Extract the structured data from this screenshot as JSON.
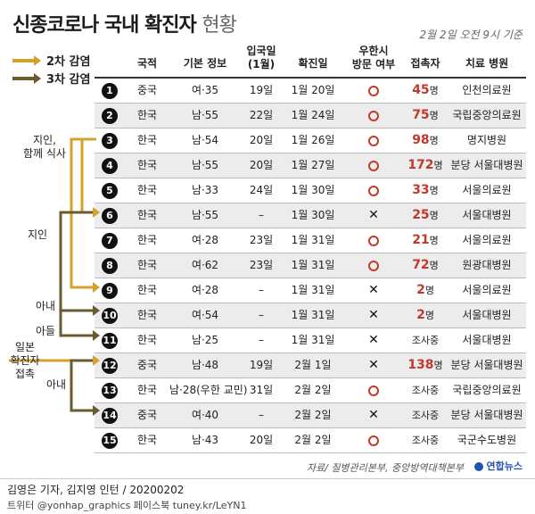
{
  "title_main": "신종코로나 국내 확진자",
  "title_light": "현황",
  "date": "2월 2일 오전 9시 기준",
  "legend": [
    {
      "label": "2차 감염",
      "color": "#d4a12a"
    },
    {
      "label": "3차 감염",
      "color": "#6b5a2e"
    }
  ],
  "headers": {
    "nation": "국적",
    "basic": "기본 정보",
    "entry": "입국일\n(1월)",
    "confirmed": "확진일",
    "wuhan": "우한시\n방문 여부",
    "contacts": "접촉자",
    "hospital": "치료 병원"
  },
  "colors": {
    "red": "#c0392b",
    "second": "#d4a12a",
    "third": "#6b5a2e"
  },
  "rows": [
    {
      "n": "1",
      "nation": "중국",
      "basic": "여·35",
      "entry": "19일",
      "confirmed": "1월 20일",
      "wuhan": "yes",
      "contacts_num": "45",
      "contacts_unit": "명",
      "hospital": "인천의료원"
    },
    {
      "n": "2",
      "nation": "한국",
      "basic": "남·55",
      "entry": "22일",
      "confirmed": "1월 24일",
      "wuhan": "yes",
      "contacts_num": "75",
      "contacts_unit": "명",
      "hospital": "국립중앙의료원"
    },
    {
      "n": "3",
      "nation": "한국",
      "basic": "남·54",
      "entry": "20일",
      "confirmed": "1월 26일",
      "wuhan": "yes",
      "contacts_num": "98",
      "contacts_unit": "명",
      "hospital": "명지병원"
    },
    {
      "n": "4",
      "nation": "한국",
      "basic": "남·55",
      "entry": "20일",
      "confirmed": "1월 27일",
      "wuhan": "yes",
      "contacts_num": "172",
      "contacts_unit": "명",
      "hospital": "분당 서울대병원"
    },
    {
      "n": "5",
      "nation": "한국",
      "basic": "남·33",
      "entry": "24일",
      "confirmed": "1월 30일",
      "wuhan": "yes",
      "contacts_num": "33",
      "contacts_unit": "명",
      "hospital": "서울의료원"
    },
    {
      "n": "6",
      "nation": "한국",
      "basic": "남·55",
      "entry": "–",
      "confirmed": "1월 30일",
      "wuhan": "no",
      "contacts_num": "25",
      "contacts_unit": "명",
      "hospital": "서울대병원"
    },
    {
      "n": "7",
      "nation": "한국",
      "basic": "여·28",
      "entry": "23일",
      "confirmed": "1월 31일",
      "wuhan": "yes",
      "contacts_num": "21",
      "contacts_unit": "명",
      "hospital": "서울의료원"
    },
    {
      "n": "8",
      "nation": "한국",
      "basic": "여·62",
      "entry": "23일",
      "confirmed": "1월 31일",
      "wuhan": "yes",
      "contacts_num": "72",
      "contacts_unit": "명",
      "hospital": "원광대병원"
    },
    {
      "n": "9",
      "nation": "한국",
      "basic": "여·28",
      "entry": "–",
      "confirmed": "1월 31일",
      "wuhan": "no",
      "contacts_num": "2",
      "contacts_unit": "명",
      "hospital": "서울의료원"
    },
    {
      "n": "10",
      "nation": "한국",
      "basic": "여·54",
      "entry": "–",
      "confirmed": "1월 31일",
      "wuhan": "no",
      "contacts_num": "2",
      "contacts_unit": "명",
      "hospital": "서울대병원"
    },
    {
      "n": "11",
      "nation": "한국",
      "basic": "남·25",
      "entry": "–",
      "confirmed": "1월 31일",
      "wuhan": "no",
      "contacts_num": "",
      "contacts_unit": "조사중",
      "hospital": "서울대병원"
    },
    {
      "n": "12",
      "nation": "중국",
      "basic": "남·48",
      "entry": "19일",
      "confirmed": "2월 1일",
      "wuhan": "no",
      "contacts_num": "138",
      "contacts_unit": "명",
      "hospital": "분당 서울대병원"
    },
    {
      "n": "13",
      "nation": "한국",
      "basic": "남·28(우한 교민)",
      "entry": "31일",
      "confirmed": "2월 2일",
      "wuhan": "yes",
      "contacts_num": "",
      "contacts_unit": "조사중",
      "hospital": "국립중앙의료원"
    },
    {
      "n": "14",
      "nation": "중국",
      "basic": "여·40",
      "entry": "–",
      "confirmed": "2월 2일",
      "wuhan": "no",
      "contacts_num": "",
      "contacts_unit": "조사중",
      "hospital": "분당 서울대병원"
    },
    {
      "n": "15",
      "nation": "한국",
      "basic": "남·43",
      "entry": "20일",
      "confirmed": "2월 2일",
      "wuhan": "yes",
      "contacts_num": "",
      "contacts_unit": "조사중",
      "hospital": "국군수도병원"
    }
  ],
  "side_labels": {
    "acquaint_meal": "지인,\n함께 식사",
    "acquaint": "지인",
    "wife": "아내",
    "son": "아들",
    "japan": "일본\n확진자\n접촉",
    "wife2": "아내"
  },
  "source": "자료/ 질병관리본부, 중앙방역대책본부",
  "logo": "연합뉴스",
  "credit1": "김영은 기자, 김지영 인턴 / 20200202",
  "credit2": "트위터 @yonhap_graphics  페이스북 tuney.kr/LeYN1"
}
